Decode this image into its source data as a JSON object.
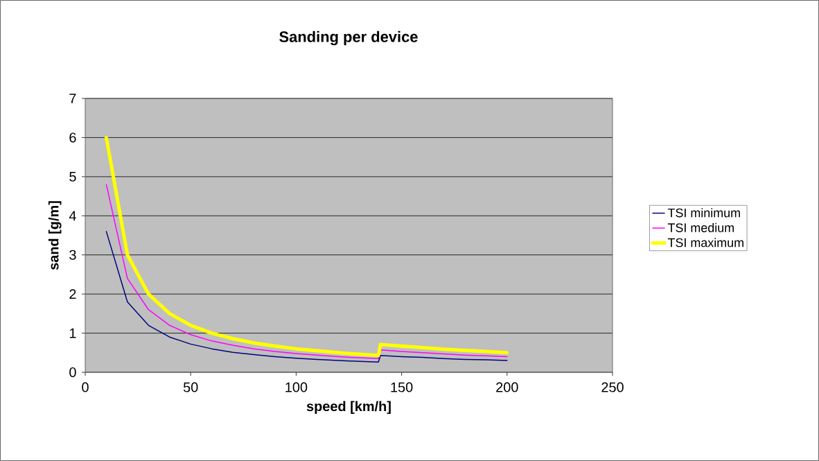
{
  "chart_data": {
    "type": "line",
    "title": "Sanding per device",
    "xlabel": "speed [km/h]",
    "ylabel": "sand [g/m]",
    "x": [
      10,
      20,
      30,
      40,
      50,
      60,
      70,
      80,
      90,
      100,
      110,
      120,
      130,
      139,
      140,
      150,
      160,
      170,
      180,
      190,
      200
    ],
    "series": [
      {
        "name": "TSI minimum",
        "color": "#000080",
        "values": [
          3.6,
          1.8,
          1.2,
          0.9,
          0.72,
          0.6,
          0.51,
          0.45,
          0.4,
          0.36,
          0.33,
          0.3,
          0.28,
          0.26,
          0.43,
          0.4,
          0.38,
          0.35,
          0.33,
          0.32,
          0.3
        ]
      },
      {
        "name": "TSI medium",
        "color": "#ff00ff",
        "values": [
          4.8,
          2.4,
          1.6,
          1.2,
          0.96,
          0.8,
          0.69,
          0.6,
          0.53,
          0.48,
          0.44,
          0.4,
          0.37,
          0.35,
          0.57,
          0.53,
          0.5,
          0.47,
          0.44,
          0.42,
          0.4
        ]
      },
      {
        "name": "TSI maximum",
        "color": "#ffff00",
        "values": [
          6,
          3,
          2,
          1.5,
          1.2,
          1,
          0.86,
          0.75,
          0.67,
          0.6,
          0.55,
          0.5,
          0.46,
          0.43,
          0.71,
          0.67,
          0.63,
          0.59,
          0.56,
          0.53,
          0.5
        ]
      }
    ],
    "xlim": [
      0,
      250
    ],
    "xticks": [
      0,
      50,
      100,
      150,
      200,
      250
    ],
    "ylim": [
      0,
      7
    ],
    "yticks": [
      0,
      1,
      2,
      3,
      4,
      5,
      6,
      7
    ],
    "grid": "y",
    "legend": "right",
    "marker": "none",
    "line_style": "solid"
  }
}
